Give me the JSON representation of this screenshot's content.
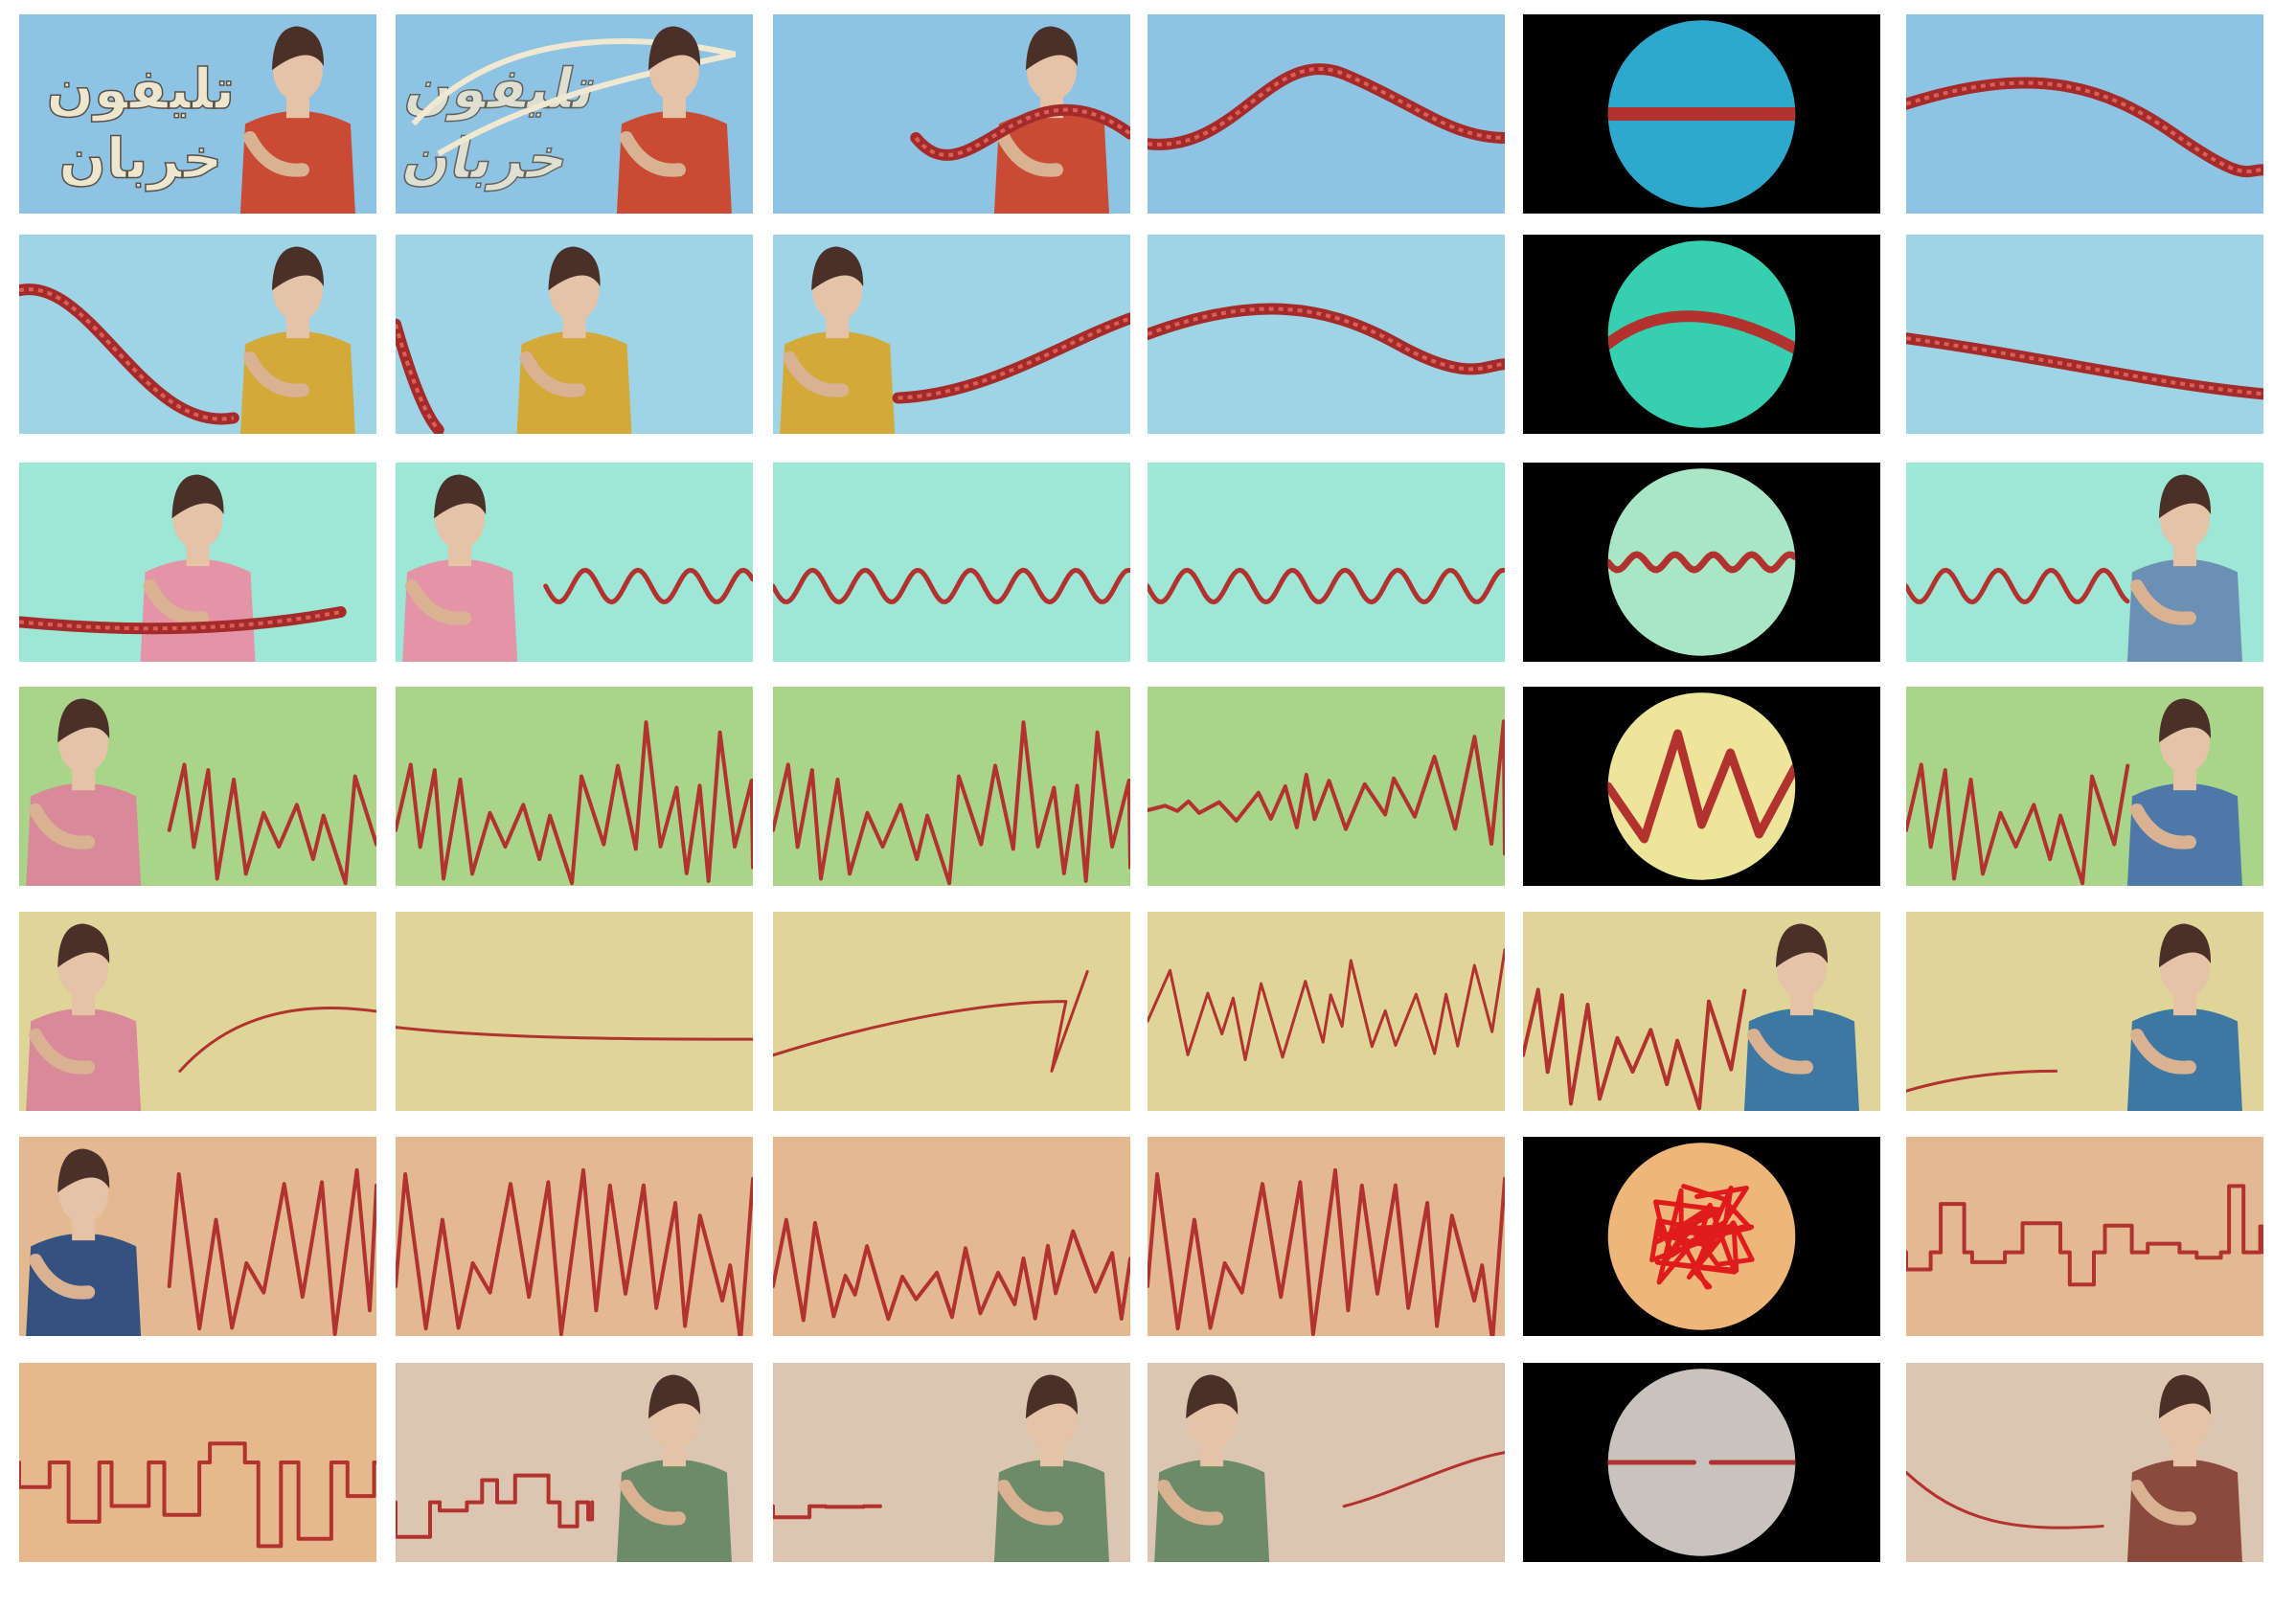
{
  "storyboard": {
    "title_lines": [
      "تليفون",
      "خربان"
    ],
    "rows": [
      {
        "bg": "#8fc3e3",
        "panels": [
          {
            "kind": "title_figure",
            "figure": "older-woman-red-shirt",
            "figure_color": "#c94b34"
          },
          {
            "kind": "figure_whisper",
            "figure": "older-woman-red-shirt",
            "figure_color": "#c94b34"
          },
          {
            "kind": "figure_line",
            "figure": "older-woman-red-shirt",
            "figure_color": "#c94b34",
            "line": "rope-wave"
          },
          {
            "kind": "line",
            "line": "rope-hump"
          },
          {
            "kind": "circle",
            "circle_color": "#2ea8cc",
            "line": "rope-straight"
          },
          {
            "kind": "line",
            "line": "rope-descend"
          }
        ]
      },
      {
        "bg": "#9fd4e6",
        "panels": [
          {
            "kind": "figure_line",
            "figure": "grandmother-yellow-cardigan",
            "figure_color": "#d3a93a",
            "line": "rope-valley"
          },
          {
            "kind": "figure_line",
            "figure": "grandmother-yellow-cardigan",
            "figure_color": "#d3a93a",
            "line": "rope-edge"
          },
          {
            "kind": "figure_line",
            "figure": "grandmother-yellow-cardigan",
            "figure_color": "#d3a93a",
            "line": "rope-rise"
          },
          {
            "kind": "line",
            "line": "rope-soft-hump"
          },
          {
            "kind": "circle",
            "circle_color": "#36cfb0",
            "line": "rope-arch"
          },
          {
            "kind": "line",
            "line": "rope-slope"
          }
        ]
      },
      {
        "bg": "#9ee6d5",
        "panels": [
          {
            "kind": "figure_line",
            "figure": "young-woman-pink-sweater",
            "figure_color": "#e394a6",
            "line": "rope-low"
          },
          {
            "kind": "figure_line",
            "figure": "young-woman-pink-sweater",
            "figure_color": "#e394a6",
            "line": "small-waves"
          },
          {
            "kind": "line",
            "line": "small-waves"
          },
          {
            "kind": "line",
            "line": "small-waves"
          },
          {
            "kind": "circle",
            "circle_color": "#a9e6c5",
            "line": "twist"
          },
          {
            "kind": "figure_line",
            "figure": "bearded-man-blue-tee",
            "figure_color": "#6c8fb4",
            "line": "small-waves"
          }
        ]
      },
      {
        "bg": "#a9d48a",
        "panels": [
          {
            "kind": "figure_line",
            "figure": "young-woman-pink-sweater",
            "figure_color": "#d98a98",
            "line": "zigzag"
          },
          {
            "kind": "line",
            "line": "zigzag"
          },
          {
            "kind": "line",
            "line": "zigzag"
          },
          {
            "kind": "line",
            "line": "zigzag-growing"
          },
          {
            "kind": "circle",
            "circle_color": "#ece59a",
            "line": "zigzag-big"
          },
          {
            "kind": "figure_line",
            "figure": "bearded-man-blue-tee",
            "figure_color": "#4e78a8",
            "line": "zigzag"
          }
        ]
      },
      {
        "bg": "#dfd599",
        "panels": [
          {
            "kind": "figure_line",
            "figure": "young-woman-pink-sweater",
            "figure_color": "#d98a98",
            "line": "thin-rise"
          },
          {
            "kind": "line",
            "line": "thin-flat"
          },
          {
            "kind": "line",
            "line": "thin-rise-kink"
          },
          {
            "kind": "line",
            "line": "scribble"
          },
          {
            "kind": "figure_line",
            "figure": "bearded-man-blue-tee",
            "figure_color": "#3d78a3",
            "line": "zigzag"
          },
          {
            "kind": "figure_line",
            "figure": "bearded-man-blue-tee",
            "figure_color": "#3d78a3",
            "line": "thin-low"
          }
        ]
      },
      {
        "bg": "#e3b992",
        "panels": [
          {
            "kind": "figure_line",
            "figure": "bearded-man-blue-tee",
            "figure_color": "#34517f",
            "line": "spikes"
          },
          {
            "kind": "line",
            "line": "spikes"
          },
          {
            "kind": "line",
            "line": "spikes-sparse"
          },
          {
            "kind": "line",
            "line": "spikes"
          },
          {
            "kind": "circle",
            "circle_color": "#efb67a",
            "line": "tangle"
          },
          {
            "kind": "line",
            "line": "square-wave"
          }
        ]
      },
      {
        "bg": "#dcc6b1",
        "panels": [
          {
            "kind": "line",
            "line": "square-wave-tall",
            "bg_override": "#e5b98d"
          },
          {
            "kind": "figure_line",
            "figure": "heavy-man-green-shirt",
            "figure_color": "#6d8a69",
            "line": "square-wave-low"
          },
          {
            "kind": "figure_line",
            "figure": "heavy-man-green-shirt",
            "figure_color": "#6d8a69",
            "line": "square-wave-short"
          },
          {
            "kind": "figure_line",
            "figure": "heavy-man-green-shirt",
            "figure_color": "#6d8a69",
            "line": "thin-rise-right"
          },
          {
            "kind": "circle",
            "circle_color": "#c9c3bd",
            "line": "broken"
          },
          {
            "kind": "figure_line",
            "figure": "older-woman-brown-shirt",
            "figure_color": "#8c4a3c",
            "line": "thin-curve"
          }
        ]
      }
    ]
  },
  "colors": {
    "line": "#b1322e",
    "rope": "#a52a2a",
    "black": "#000000",
    "title": "#efe6d0"
  }
}
